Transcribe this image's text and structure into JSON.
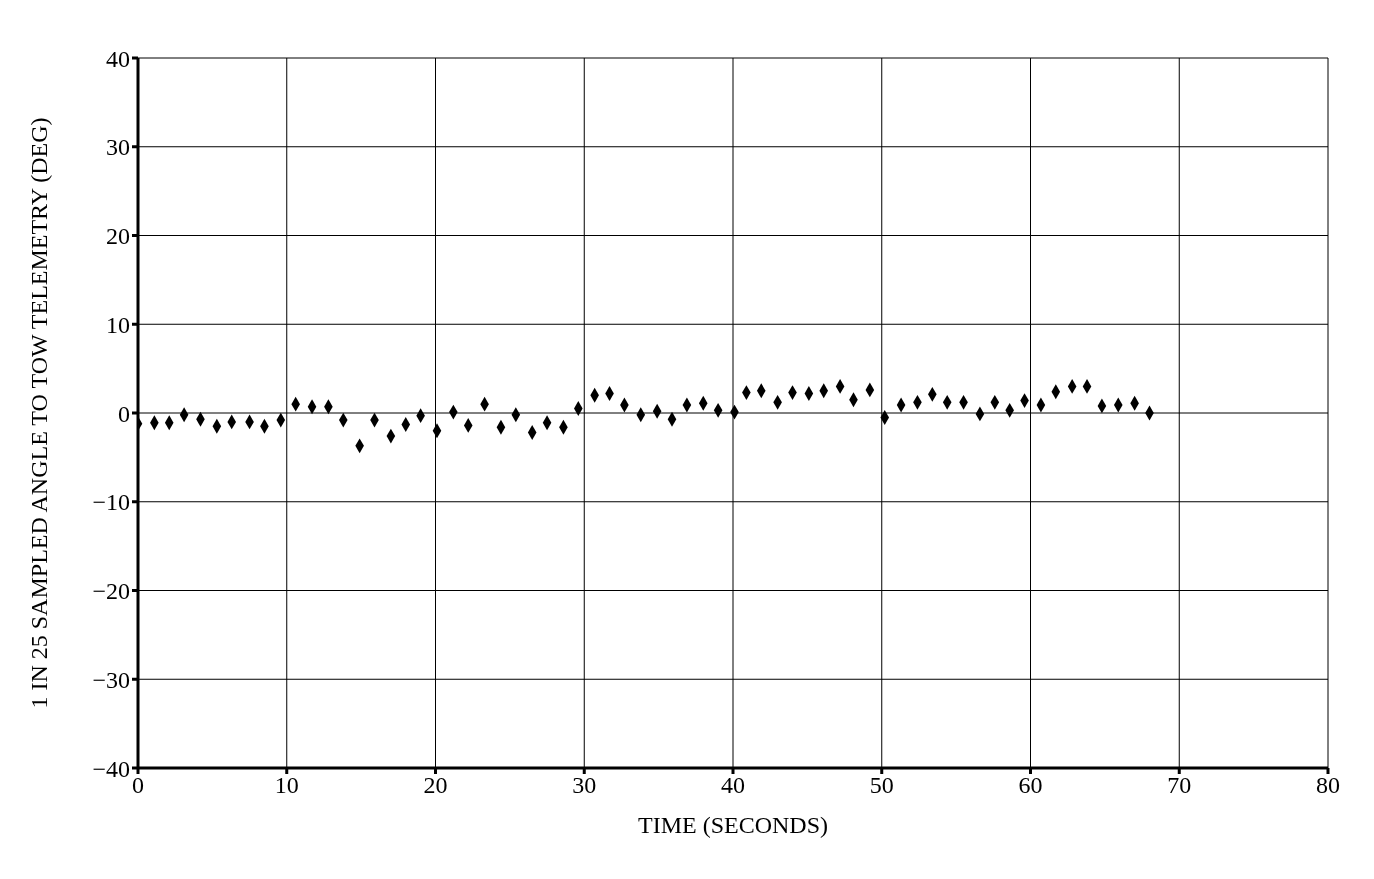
{
  "chart_data": {
    "type": "scatter",
    "xlabel": "TIME (SECONDS)",
    "ylabel": "1 IN 25 SAMPLED ANGLE TO TOW TELEMETRY (DEG)",
    "x": [
      0,
      1.1,
      2.1,
      3.1,
      4.2,
      5.3,
      6.3,
      7.5,
      8.5,
      9.6,
      10.6,
      11.7,
      12.8,
      13.8,
      14.9,
      15.9,
      17.0,
      18.0,
      19.0,
      20.1,
      21.2,
      22.2,
      23.3,
      24.4,
      25.4,
      26.5,
      27.5,
      28.6,
      29.6,
      30.7,
      31.7,
      32.7,
      33.8,
      34.9,
      35.9,
      36.9,
      38.0,
      39.0,
      40.1,
      40.9,
      41.9,
      43.0,
      44.0,
      45.1,
      46.1,
      47.2,
      48.1,
      49.2,
      50.2,
      51.3,
      52.4,
      53.4,
      54.4,
      55.5,
      56.6,
      57.6,
      58.6,
      59.6,
      60.7,
      61.7,
      62.8,
      63.8,
      64.8,
      65.9,
      67.0,
      68.0
    ],
    "series": [
      {
        "color": "#000000",
        "values": [
          -1.2,
          -1.1,
          -1.1,
          -0.2,
          -0.7,
          -1.5,
          -1.0,
          -1.0,
          -1.5,
          -0.8,
          1.0,
          0.7,
          0.7,
          -0.8,
          -3.7,
          -0.8,
          -2.6,
          -1.3,
          -0.3,
          -2.0,
          0.1,
          -1.4,
          1.0,
          -1.6,
          -0.2,
          -2.2,
          -1.1,
          -1.6,
          0.5,
          2.0,
          2.2,
          0.9,
          -0.2,
          0.2,
          -0.7,
          0.9,
          1.1,
          0.3,
          0.1,
          2.3,
          2.5,
          1.2,
          2.3,
          2.2,
          2.5,
          3.0,
          1.5,
          2.6,
          -0.5,
          0.9,
          1.2,
          2.1,
          1.2,
          1.2,
          -0.1,
          1.2,
          0.3,
          1.4,
          0.9,
          2.4,
          3.0,
          3.0,
          0.8,
          0.9,
          1.1,
          0.0
        ]
      }
    ],
    "xlim": [
      0,
      80
    ],
    "xticks": [
      0,
      10,
      20,
      30,
      40,
      50,
      60,
      70,
      80
    ],
    "ylim": [
      -40,
      40
    ],
    "yticks": [
      -40,
      -30,
      -20,
      -10,
      0,
      10,
      20,
      30,
      40
    ],
    "grid": true,
    "marker": "diamond"
  }
}
